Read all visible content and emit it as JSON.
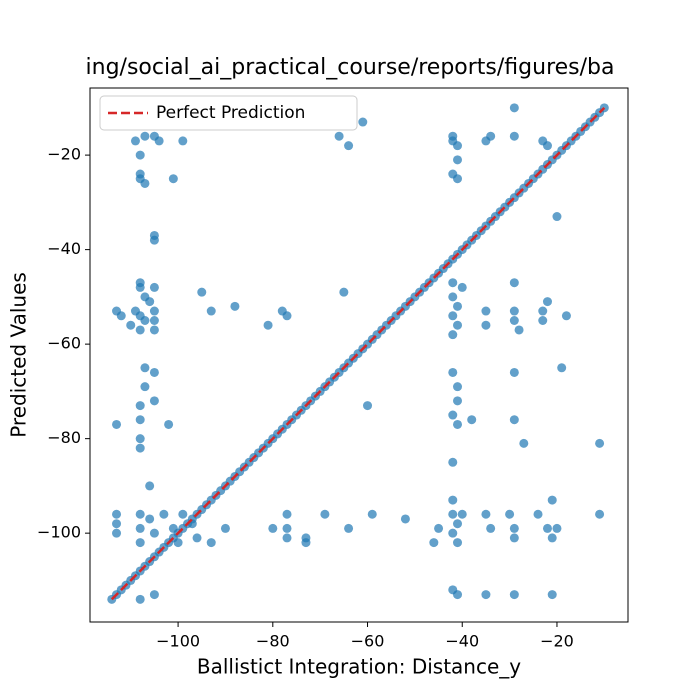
{
  "chart_data": {
    "type": "scatter",
    "title": "ing/social_ai_practical_course/reports/figures/ba",
    "x_label": "Ballistict Integration: Distance_y",
    "y_label": "Predicted Values",
    "xlim": [
      -118.6,
      -5.0
    ],
    "ylim": [
      -118.8,
      -5.8
    ],
    "xticks": [
      {
        "value": -100,
        "label": "−100"
      },
      {
        "value": -80,
        "label": "−80"
      },
      {
        "value": -60,
        "label": "−60"
      },
      {
        "value": -40,
        "label": "−40"
      },
      {
        "value": -20,
        "label": "−20"
      }
    ],
    "yticks": [
      {
        "value": -100,
        "label": "−100"
      },
      {
        "value": -80,
        "label": "−80"
      },
      {
        "value": -60,
        "label": "−60"
      },
      {
        "value": -40,
        "label": "−40"
      },
      {
        "value": -20,
        "label": "−20"
      }
    ],
    "legend": "upper left",
    "series": [
      {
        "type": "scatter",
        "color": "#1f77b4",
        "x": [
          -109,
          -107,
          -105,
          -108,
          -108,
          -108,
          -107,
          -104,
          -101,
          -99,
          -66,
          -64,
          -61,
          -42,
          -42,
          -41,
          -41,
          -42,
          -41,
          -35,
          -34,
          -29,
          -29,
          -23,
          -22,
          -20,
          -105,
          -105,
          -113,
          -112,
          -110,
          -109,
          -108,
          -108,
          -107,
          -108,
          -107,
          -108,
          -106,
          -105,
          -105,
          -105,
          -105,
          -95,
          -93,
          -88,
          -81,
          -78,
          -77,
          -65,
          -42,
          -42,
          -41,
          -42,
          -41,
          -42,
          -40,
          -35,
          -35,
          -29,
          -29,
          -29,
          -28,
          -23,
          -22,
          -23,
          -18,
          -113,
          -108,
          -108,
          -107,
          -107,
          -105,
          -105,
          -102,
          -60,
          -42,
          -41,
          -41,
          -42,
          -41,
          -38,
          -29,
          -29,
          -27,
          -19,
          -11,
          -42,
          -108,
          -108,
          -106,
          -113,
          -113,
          -113,
          -108,
          -108,
          -108,
          -106,
          -105,
          -103,
          -101,
          -100,
          -99,
          -97,
          -96,
          -93,
          -90,
          -80,
          -77,
          -77,
          -77,
          -73,
          -73,
          -69,
          -64,
          -59,
          -52,
          -46,
          -45,
          -42,
          -42,
          -41,
          -42,
          -41,
          -40,
          -35,
          -34,
          -30,
          -29,
          -29,
          -24,
          -22,
          -21,
          -21,
          -20,
          -11,
          -108,
          -105,
          -42,
          -41,
          -35,
          -29,
          -21
        ],
        "values": [
          -17,
          -16,
          -16,
          -20,
          -24,
          -25,
          -26,
          -17,
          -25,
          -17,
          -16,
          -18,
          -13,
          -16,
          -17,
          -18,
          -21,
          -24,
          -25,
          -17,
          -16,
          -10,
          -16,
          -17,
          -18,
          -33,
          -37,
          -38,
          -53,
          -54,
          -56,
          -53,
          -48,
          -47,
          -50,
          -54,
          -55,
          -57,
          -51,
          -53,
          -55,
          -57,
          -48,
          -49,
          -53,
          -52,
          -56,
          -53,
          -54,
          -49,
          -47,
          -50,
          -52,
          -54,
          -56,
          -58,
          -48,
          -53,
          -56,
          -47,
          -53,
          -55,
          -57,
          -53,
          -51,
          -55,
          -54,
          -77,
          -73,
          -76,
          -65,
          -69,
          -66,
          -72,
          -77,
          -73,
          -66,
          -69,
          -72,
          -75,
          -77,
          -76,
          -66,
          -76,
          -81,
          -65,
          -81,
          -85,
          -80,
          -82,
          -90,
          -96,
          -98,
          -100,
          -96,
          -99,
          -102,
          -97,
          -100,
          -96,
          -99,
          -102,
          -96,
          -98,
          -101,
          -102,
          -99,
          -99,
          -96,
          -99,
          -101,
          -101,
          -102,
          -96,
          -99,
          -96,
          -97,
          -102,
          -99,
          -93,
          -96,
          -98,
          -100,
          -102,
          -96,
          -96,
          -99,
          -96,
          -99,
          -101,
          -96,
          -99,
          -101,
          -93,
          -99,
          -96,
          -114,
          -113,
          -112,
          -113,
          -113,
          -113,
          -113
        ]
      },
      {
        "type": "scatter",
        "color": "#1f77b4",
        "x": [
          -114,
          -113,
          -112,
          -111,
          -110,
          -109,
          -108,
          -107,
          -106,
          -105,
          -104,
          -103,
          -102,
          -101,
          -100,
          -99,
          -98,
          -97,
          -96,
          -95,
          -94,
          -93,
          -92,
          -91,
          -90,
          -89,
          -88,
          -87,
          -86,
          -85,
          -84,
          -83,
          -82,
          -81,
          -80,
          -79,
          -78,
          -77,
          -76,
          -75,
          -74,
          -73,
          -72,
          -71,
          -70,
          -69,
          -68,
          -67,
          -66,
          -65,
          -64,
          -63,
          -62,
          -61,
          -60,
          -59,
          -58,
          -57,
          -56,
          -55,
          -54,
          -53,
          -52,
          -51,
          -50,
          -49,
          -48,
          -47,
          -46,
          -45,
          -44,
          -43,
          -42,
          -41,
          -40,
          -39,
          -38,
          -37,
          -36,
          -35,
          -34,
          -33,
          -32,
          -31,
          -30,
          -29,
          -28,
          -27,
          -26,
          -25,
          -24,
          -23,
          -22,
          -21,
          -20,
          -19,
          -18,
          -17,
          -16,
          -15,
          -14,
          -13,
          -12,
          -11,
          -10
        ],
        "values": [
          -114,
          -113,
          -112,
          -111,
          -110,
          -109,
          -108,
          -107,
          -106,
          -105,
          -104,
          -103,
          -102,
          -101,
          -100,
          -99,
          -98,
          -97,
          -96,
          -95,
          -94,
          -93,
          -92,
          -91,
          -90,
          -89,
          -88,
          -87,
          -86,
          -85,
          -84,
          -83,
          -82,
          -81,
          -80,
          -79,
          -78,
          -77,
          -76,
          -75,
          -74,
          -73,
          -72,
          -71,
          -70,
          -69,
          -68,
          -67,
          -66,
          -65,
          -64,
          -63,
          -62,
          -61,
          -60,
          -59,
          -58,
          -57,
          -56,
          -55,
          -54,
          -53,
          -52,
          -51,
          -50,
          -49,
          -48,
          -47,
          -46,
          -45,
          -44,
          -43,
          -42,
          -41,
          -40,
          -39,
          -38,
          -37,
          -36,
          -35,
          -34,
          -33,
          -32,
          -31,
          -30,
          -29,
          -28,
          -27,
          -26,
          -25,
          -24,
          -23,
          -22,
          -21,
          -20,
          -19,
          -18,
          -17,
          -16,
          -15,
          -14,
          -13,
          -12,
          -11,
          -10
        ]
      },
      {
        "type": "line",
        "name": "Perfect Prediction",
        "color": "#d62728",
        "dashed": true,
        "x": [
          -114,
          -10
        ],
        "values": [
          -114,
          -10
        ]
      }
    ]
  }
}
